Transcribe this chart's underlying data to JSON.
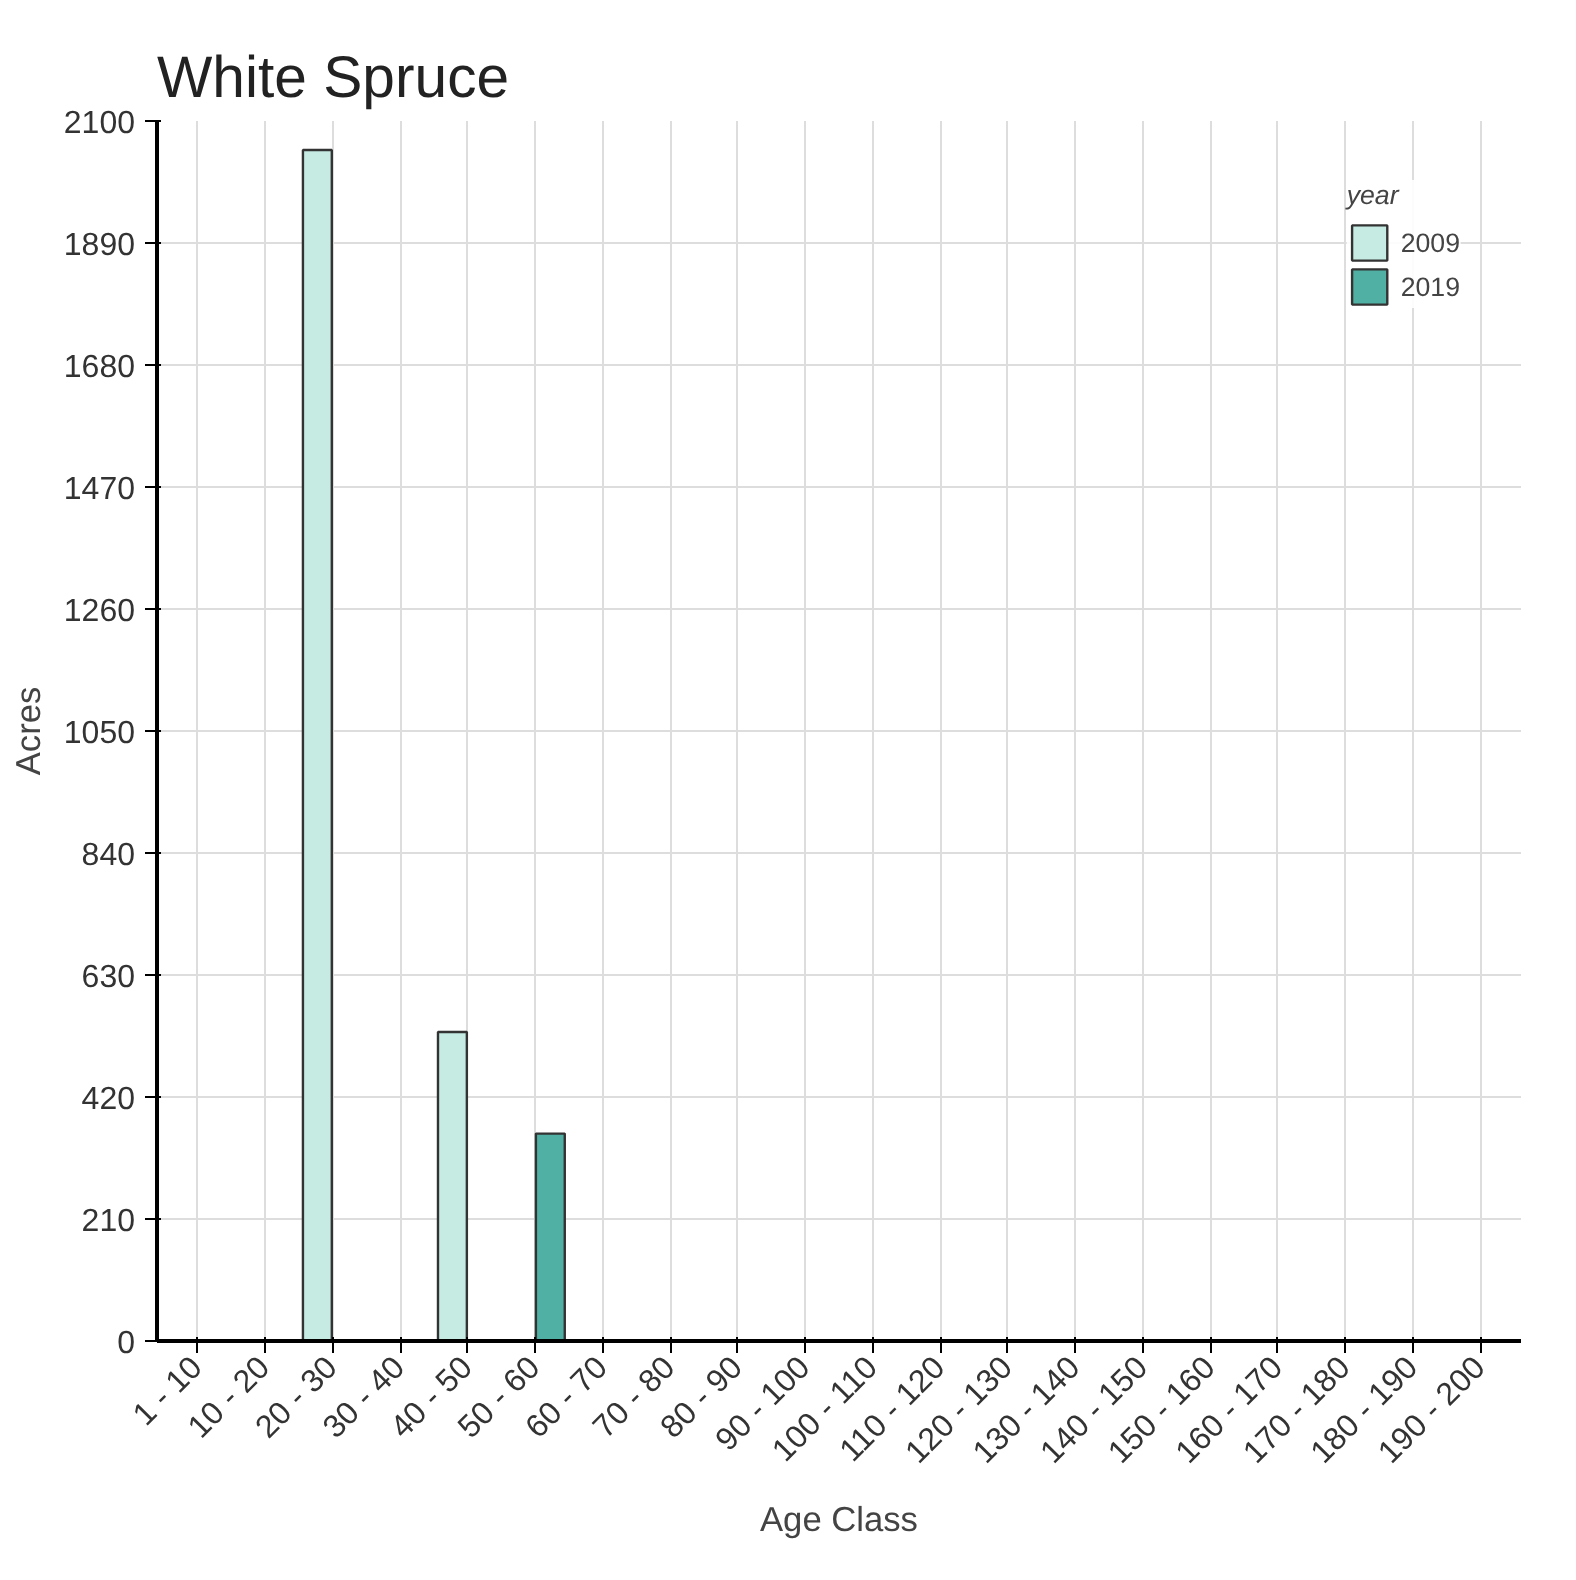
{
  "chart_data": {
    "type": "bar",
    "title": "White Spruce",
    "xlabel": "Age Class",
    "ylabel": "Acres",
    "legend_title": "year",
    "categories": [
      "1 - 10",
      "10 - 20",
      "20 - 30",
      "30 - 40",
      "40 - 50",
      "50 - 60",
      "60 - 70",
      "70 - 80",
      "80 - 90",
      "90 - 100",
      "100 - 110",
      "110 - 120",
      "120 - 130",
      "130 - 140",
      "140 - 150",
      "150 - 160",
      "160 - 170",
      "170 - 180",
      "180 - 190",
      "190 - 200"
    ],
    "series": [
      {
        "name": "2009",
        "color": "#c6ebe3",
        "values": [
          null,
          null,
          2050,
          null,
          532,
          null,
          null,
          null,
          null,
          null,
          null,
          null,
          null,
          null,
          null,
          null,
          null,
          null,
          null,
          null
        ]
      },
      {
        "name": "2019",
        "color": "#4fb0a3",
        "values": [
          null,
          null,
          null,
          null,
          null,
          357,
          null,
          null,
          null,
          null,
          null,
          null,
          null,
          null,
          null,
          null,
          null,
          null,
          null,
          null
        ]
      }
    ],
    "ylim": [
      0,
      2100
    ],
    "yticks": [
      0,
      210,
      420,
      630,
      840,
      1050,
      1260,
      1470,
      1680,
      1890,
      2100
    ],
    "grid": true,
    "legend": "top right"
  }
}
